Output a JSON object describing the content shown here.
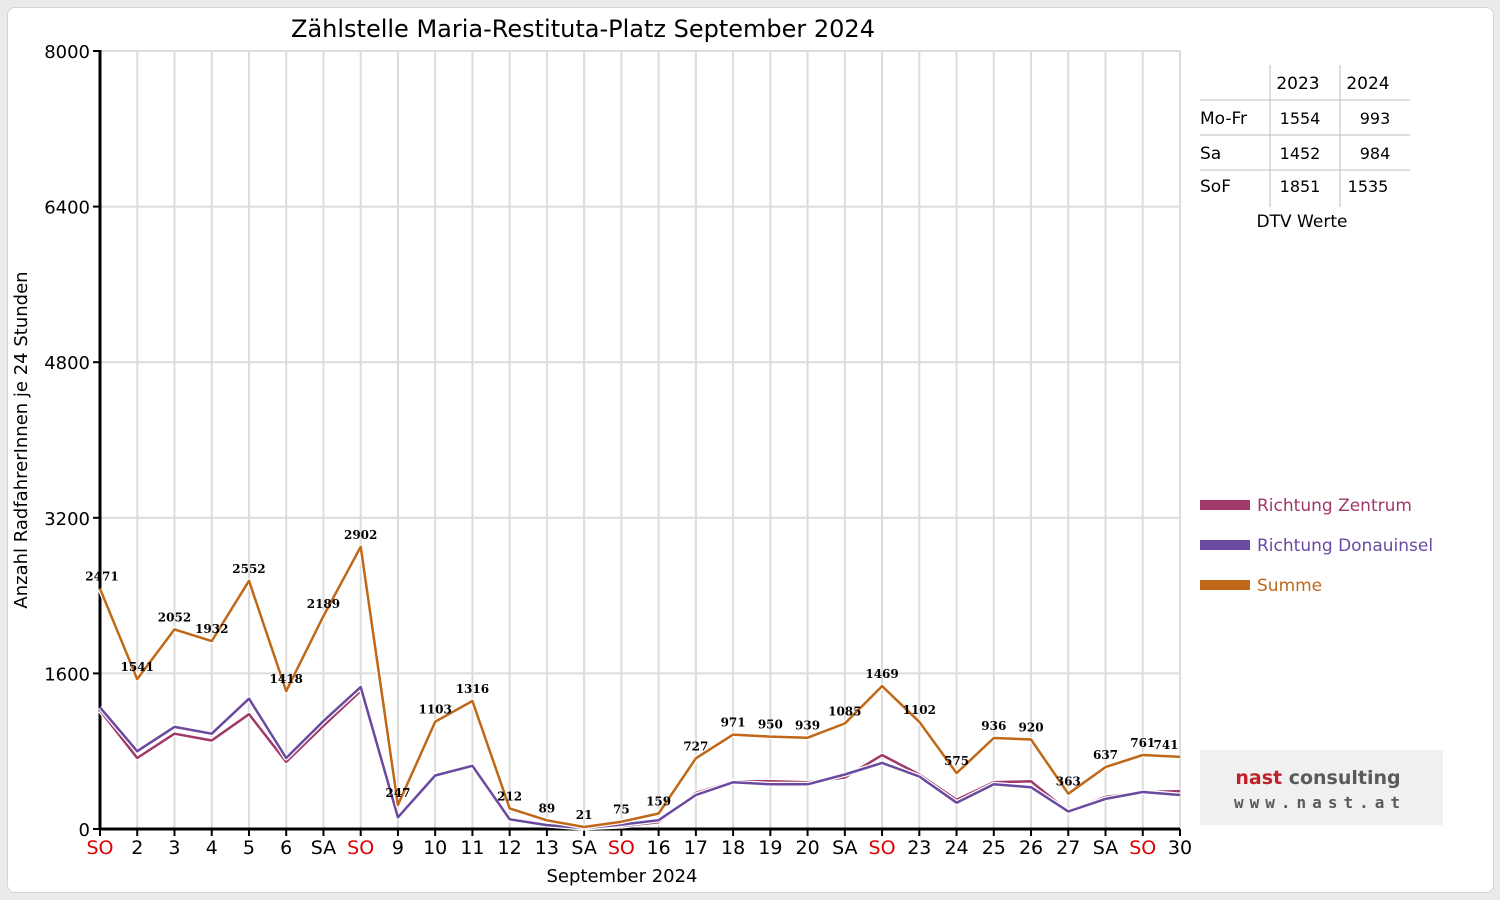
{
  "chart_data": {
    "type": "line",
    "title": "Zählstelle Maria-Restituta-Platz September 2024",
    "xlabel": "September 2024",
    "ylabel": "Anzahl RadfahrerInnen je 24 Stunden",
    "ylim": [
      0,
      8000
    ],
    "yticks": [
      "0",
      "1600",
      "3200",
      "4800",
      "6400",
      "8000"
    ],
    "grid": true,
    "legend_position": "right",
    "categories": [
      "SO",
      "2",
      "3",
      "4",
      "5",
      "6",
      "SA",
      "SO",
      "9",
      "10",
      "11",
      "12",
      "13",
      "SA",
      "SO",
      "16",
      "17",
      "18",
      "19",
      "20",
      "SA",
      "SO",
      "23",
      "24",
      "25",
      "26",
      "27",
      "SA",
      "SO",
      "30"
    ],
    "weekend_color": "#e00000",
    "series": [
      {
        "name": "Richtung Zentrum",
        "color": "#a0386a",
        "values": [
          1220,
          730,
          980,
          910,
          1180,
          690,
          1060,
          1420,
          130,
          560,
          640,
          110,
          50,
          12,
          30,
          70,
          370,
          490,
          490,
          480,
          530,
          760,
          560,
          300,
          480,
          490,
          180,
          330,
          380,
          390
        ]
      },
      {
        "name": "Richtung Donauinsel",
        "color": "#6a4aa0",
        "values": [
          1250,
          800,
          1050,
          980,
          1340,
          730,
          1110,
          1460,
          120,
          550,
          650,
          100,
          40,
          9,
          45,
          90,
          350,
          480,
          460,
          460,
          560,
          680,
          540,
          270,
          460,
          430,
          180,
          310,
          380,
          350
        ]
      },
      {
        "name": "Summe",
        "color": "#c06818",
        "values": [
          2471,
          1541,
          2052,
          1932,
          2552,
          1418,
          2189,
          2902,
          247,
          1103,
          1316,
          212,
          89,
          21,
          75,
          159,
          727,
          971,
          950,
          939,
          1085,
          1469,
          1102,
          575,
          936,
          920,
          363,
          637,
          761,
          741
        ],
        "labels": [
          "2471",
          "1541",
          "2052",
          "1932",
          "2552",
          "1418",
          "2189",
          "2902",
          "247",
          "1103",
          "1316",
          "212",
          "89",
          "21",
          "75",
          "159",
          "727",
          "971",
          "950",
          "939",
          "1085",
          "1469",
          "1102",
          "575",
          "936",
          "920",
          "363",
          "637",
          "761",
          "741"
        ]
      }
    ]
  },
  "dtv_table": {
    "caption": "DTV Werte",
    "columns": [
      "2023",
      "2024"
    ],
    "rows": [
      {
        "label": "Mo-Fr",
        "v2023": "1554",
        "v2024": "993"
      },
      {
        "label": "Sa",
        "v2023": "1452",
        "v2024": "984"
      },
      {
        "label": "SoF",
        "v2023": "1851",
        "v2024": "1535"
      }
    ]
  },
  "logo": {
    "line1": "nast consulting",
    "line2": "www.nast.at"
  },
  "colors": {
    "grid": "#dcdcdc",
    "axis": "#000000",
    "logo_red": "#c0202a",
    "logo_gray": "#5a5a5a"
  }
}
